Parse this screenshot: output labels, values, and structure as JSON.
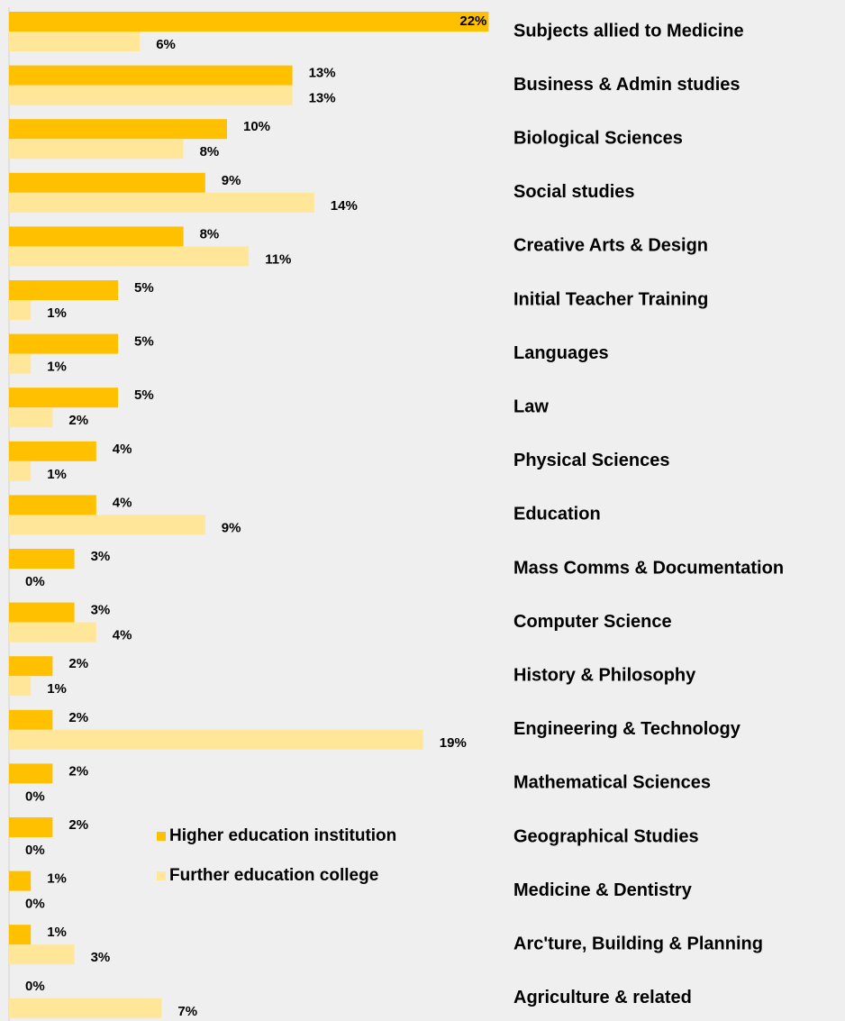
{
  "chart_data": {
    "type": "bar",
    "orientation": "horizontal",
    "categories": [
      "Subjects allied to Medicine",
      "Business & Admin studies",
      "Biological Sciences",
      "Social studies",
      "Creative Arts & Design",
      "Initial Teacher Training",
      "Languages",
      "Law",
      "Physical Sciences",
      "Education",
      "Mass Comms & Documentation",
      "Computer Science",
      "History & Philosophy",
      "Engineering & Technology",
      "Mathematical Sciences",
      "Geographical Studies",
      "Medicine & Dentistry",
      "Arc'ture, Building & Planning",
      "Agriculture & related"
    ],
    "series": [
      {
        "name": "Higher education institution",
        "color": "#ffc000",
        "values": [
          22,
          13,
          10,
          9,
          8,
          5,
          5,
          5,
          4,
          4,
          3,
          3,
          2,
          2,
          2,
          2,
          1,
          1,
          0
        ],
        "value_labels": [
          "22%",
          "13%",
          "10%",
          "9%",
          "8%",
          "5%",
          "5%",
          "5%",
          "4%",
          "4%",
          "3%",
          "3%",
          "2%",
          "2%",
          "2%",
          "2%",
          "1%",
          "1%",
          "0%"
        ]
      },
      {
        "name": "Further education college",
        "color": "#ffe699",
        "values": [
          6,
          13,
          8,
          14,
          11,
          1,
          1,
          2,
          1,
          9,
          0,
          4,
          1,
          19,
          0,
          0,
          0,
          3,
          7
        ],
        "value_labels": [
          "6%",
          "13%",
          "8%",
          "14%",
          "11%",
          "1%",
          "1%",
          "2%",
          "1%",
          "9%",
          "0%",
          "4%",
          "1%",
          "19%",
          "0%",
          "0%",
          "0%",
          "3%",
          "7%"
        ]
      }
    ]
  }
}
